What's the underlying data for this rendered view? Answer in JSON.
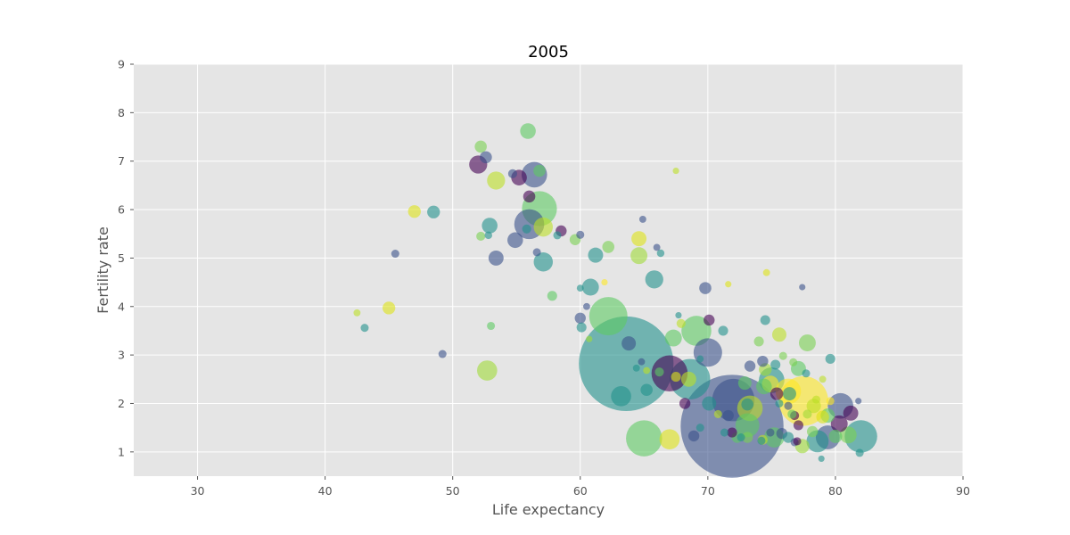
{
  "chart_data": {
    "type": "scatter",
    "title": "2005",
    "xlabel": "Life expectancy",
    "ylabel": "Fertility rate",
    "xlim": [
      25,
      90
    ],
    "ylim": [
      0.5,
      9
    ],
    "xticks": [
      30,
      40,
      50,
      60,
      70,
      80,
      90
    ],
    "yticks": [
      1,
      2,
      3,
      4,
      5,
      6,
      7,
      8,
      9
    ],
    "grid": true,
    "background": "#e5e5e5",
    "alpha": 0.6,
    "size_note": "bubble size varies with population",
    "points": [
      {
        "x": 71.9,
        "y": 1.53,
        "size": 1300,
        "color": "#3b528b"
      },
      {
        "x": 63.6,
        "y": 2.82,
        "size": 1100,
        "color": "#21918c"
      },
      {
        "x": 77.5,
        "y": 2.05,
        "size": 300,
        "color": "#fde725"
      },
      {
        "x": 72.0,
        "y": 2.07,
        "size": 220,
        "color": "#3b528b"
      },
      {
        "x": 68.6,
        "y": 2.5,
        "size": 200,
        "color": "#21918c"
      },
      {
        "x": 62.2,
        "y": 3.8,
        "size": 180,
        "color": "#5ec962"
      },
      {
        "x": 65.0,
        "y": 1.28,
        "size": 160,
        "color": "#5ec962"
      },
      {
        "x": 67.0,
        "y": 2.62,
        "size": 160,
        "color": "#440154"
      },
      {
        "x": 56.8,
        "y": 6.02,
        "size": 150,
        "color": "#5ec962"
      },
      {
        "x": 82.0,
        "y": 1.32,
        "size": 130,
        "color": "#21918c"
      },
      {
        "x": 69.1,
        "y": 3.5,
        "size": 110,
        "color": "#5ec962"
      },
      {
        "x": 56.0,
        "y": 5.7,
        "size": 110,
        "color": "#3b528b"
      },
      {
        "x": 70.0,
        "y": 3.05,
        "size": 100,
        "color": "#3b528b"
      },
      {
        "x": 56.4,
        "y": 6.72,
        "size": 80,
        "color": "#3b528b"
      },
      {
        "x": 80.4,
        "y": 1.95,
        "size": 80,
        "color": "#3b528b"
      },
      {
        "x": 73.3,
        "y": 1.9,
        "size": 80,
        "color": "#bddf26"
      },
      {
        "x": 75.0,
        "y": 2.48,
        "size": 80,
        "color": "#21918c"
      },
      {
        "x": 76.3,
        "y": 2.25,
        "size": 80,
        "color": "#fde725"
      },
      {
        "x": 79.4,
        "y": 1.3,
        "size": 70,
        "color": "#3b528b"
      },
      {
        "x": 73.1,
        "y": 1.55,
        "size": 70,
        "color": "#5ec962"
      },
      {
        "x": 78.6,
        "y": 1.22,
        "size": 60,
        "color": "#21918c"
      },
      {
        "x": 75.2,
        "y": 1.3,
        "size": 50,
        "color": "#5ec962"
      },
      {
        "x": 52.7,
        "y": 2.68,
        "size": 50,
        "color": "#a0da39"
      },
      {
        "x": 57.1,
        "y": 4.92,
        "size": 45,
        "color": "#21918c"
      },
      {
        "x": 63.2,
        "y": 2.15,
        "size": 50,
        "color": "#21918c"
      },
      {
        "x": 67.0,
        "y": 1.26,
        "size": 50,
        "color": "#dde318"
      },
      {
        "x": 57.1,
        "y": 5.64,
        "size": 45,
        "color": "#bddf26"
      },
      {
        "x": 53.4,
        "y": 6.6,
        "size": 40,
        "color": "#bddf26"
      },
      {
        "x": 52.0,
        "y": 6.93,
        "size": 40,
        "color": "#440154"
      },
      {
        "x": 65.8,
        "y": 4.56,
        "size": 40,
        "color": "#21918c"
      },
      {
        "x": 60.8,
        "y": 4.4,
        "size": 35,
        "color": "#21918c"
      },
      {
        "x": 67.3,
        "y": 3.35,
        "size": 35,
        "color": "#5ec962"
      },
      {
        "x": 77.8,
        "y": 3.25,
        "size": 35,
        "color": "#7ad151"
      },
      {
        "x": 81.0,
        "y": 1.35,
        "size": 35,
        "color": "#7ad151"
      },
      {
        "x": 80.3,
        "y": 1.58,
        "size": 35,
        "color": "#440154"
      },
      {
        "x": 64.6,
        "y": 5.05,
        "size": 35,
        "color": "#a0da39"
      },
      {
        "x": 74.9,
        "y": 2.4,
        "size": 35,
        "color": "#fde725"
      },
      {
        "x": 52.9,
        "y": 5.67,
        "size": 30,
        "color": "#21918c"
      },
      {
        "x": 55.9,
        "y": 7.62,
        "size": 30,
        "color": "#5ec962"
      },
      {
        "x": 55.2,
        "y": 6.66,
        "size": 30,
        "color": "#440154"
      },
      {
        "x": 54.9,
        "y": 5.37,
        "size": 30,
        "color": "#3b528b"
      },
      {
        "x": 53.4,
        "y": 5.0,
        "size": 28,
        "color": "#3b528b"
      },
      {
        "x": 61.2,
        "y": 5.06,
        "size": 28,
        "color": "#21918c"
      },
      {
        "x": 64.6,
        "y": 5.4,
        "size": 28,
        "color": "#dde318"
      },
      {
        "x": 63.8,
        "y": 3.24,
        "size": 25,
        "color": "#3b528b"
      },
      {
        "x": 68.5,
        "y": 2.5,
        "size": 28,
        "color": "#bddf26"
      },
      {
        "x": 74.4,
        "y": 2.35,
        "size": 30,
        "color": "#5ec962"
      },
      {
        "x": 81.2,
        "y": 1.8,
        "size": 28,
        "color": "#440154"
      },
      {
        "x": 79.4,
        "y": 1.75,
        "size": 25,
        "color": "#5ec962"
      },
      {
        "x": 78.3,
        "y": 1.95,
        "size": 25,
        "color": "#bddf26"
      },
      {
        "x": 75.6,
        "y": 3.42,
        "size": 25,
        "color": "#bddf26"
      },
      {
        "x": 77.1,
        "y": 2.72,
        "size": 28,
        "color": "#5ec962"
      },
      {
        "x": 77.4,
        "y": 1.12,
        "size": 25,
        "color": "#a0da39"
      },
      {
        "x": 48.5,
        "y": 5.95,
        "size": 20,
        "color": "#21918c"
      },
      {
        "x": 47.0,
        "y": 5.96,
        "size": 20,
        "color": "#dde318"
      },
      {
        "x": 45.0,
        "y": 3.97,
        "size": 20,
        "color": "#dde318"
      },
      {
        "x": 52.2,
        "y": 7.3,
        "size": 18,
        "color": "#7ad151"
      },
      {
        "x": 52.6,
        "y": 7.08,
        "size": 18,
        "color": "#3b528b"
      },
      {
        "x": 56.0,
        "y": 6.27,
        "size": 18,
        "color": "#440154"
      },
      {
        "x": 56.8,
        "y": 6.8,
        "size": 18,
        "color": "#5ec962"
      },
      {
        "x": 58.5,
        "y": 5.56,
        "size": 15,
        "color": "#440154"
      },
      {
        "x": 59.6,
        "y": 5.38,
        "size": 15,
        "color": "#7ad151"
      },
      {
        "x": 62.2,
        "y": 5.23,
        "size": 18,
        "color": "#7ad151"
      },
      {
        "x": 60.0,
        "y": 3.76,
        "size": 15,
        "color": "#3b528b"
      },
      {
        "x": 57.8,
        "y": 4.22,
        "size": 12,
        "color": "#5ec962"
      },
      {
        "x": 60.1,
        "y": 3.57,
        "size": 12,
        "color": "#21918c"
      },
      {
        "x": 70.1,
        "y": 3.72,
        "size": 15,
        "color": "#440154"
      },
      {
        "x": 69.8,
        "y": 4.38,
        "size": 18,
        "color": "#3b528b"
      },
      {
        "x": 65.2,
        "y": 2.28,
        "size": 18,
        "color": "#21918c"
      },
      {
        "x": 68.2,
        "y": 2.0,
        "size": 15,
        "color": "#440154"
      },
      {
        "x": 68.9,
        "y": 1.33,
        "size": 15,
        "color": "#3b528b"
      },
      {
        "x": 70.1,
        "y": 2.0,
        "size": 25,
        "color": "#21918c"
      },
      {
        "x": 72.9,
        "y": 2.42,
        "size": 22,
        "color": "#5ec962"
      },
      {
        "x": 73.3,
        "y": 2.77,
        "size": 15,
        "color": "#3b528b"
      },
      {
        "x": 74.3,
        "y": 2.87,
        "size": 15,
        "color": "#3b528b"
      },
      {
        "x": 74.5,
        "y": 2.7,
        "size": 20,
        "color": "#a0da39"
      },
      {
        "x": 74.0,
        "y": 3.28,
        "size": 12,
        "color": "#7ad151"
      },
      {
        "x": 75.3,
        "y": 2.8,
        "size": 12,
        "color": "#21918c"
      },
      {
        "x": 74.5,
        "y": 3.72,
        "size": 12,
        "color": "#21918c"
      },
      {
        "x": 76.4,
        "y": 2.2,
        "size": 22,
        "color": "#21918c"
      },
      {
        "x": 75.8,
        "y": 1.38,
        "size": 15,
        "color": "#3b528b"
      },
      {
        "x": 76.3,
        "y": 1.3,
        "size": 15,
        "color": "#21918c"
      },
      {
        "x": 77.1,
        "y": 1.55,
        "size": 12,
        "color": "#440154"
      },
      {
        "x": 78.2,
        "y": 1.42,
        "size": 15,
        "color": "#7ad151"
      },
      {
        "x": 79.6,
        "y": 2.92,
        "size": 12,
        "color": "#21918c"
      },
      {
        "x": 79.0,
        "y": 1.72,
        "size": 20,
        "color": "#dde318"
      },
      {
        "x": 80.0,
        "y": 1.32,
        "size": 22,
        "color": "#5ec962"
      },
      {
        "x": 73.1,
        "y": 1.3,
        "size": 15,
        "color": "#7ad151"
      },
      {
        "x": 71.6,
        "y": 1.75,
        "size": 15,
        "color": "#3b528b"
      },
      {
        "x": 72.3,
        "y": 1.3,
        "size": 15,
        "color": "#5ec962"
      },
      {
        "x": 71.9,
        "y": 1.4,
        "size": 12,
        "color": "#440154"
      },
      {
        "x": 74.3,
        "y": 1.25,
        "size": 12,
        "color": "#bddf26"
      },
      {
        "x": 73.1,
        "y": 1.98,
        "size": 18,
        "color": "#21918c"
      },
      {
        "x": 67.5,
        "y": 2.55,
        "size": 12,
        "color": "#dde318"
      },
      {
        "x": 66.2,
        "y": 2.65,
        "size": 10,
        "color": "#5ec962"
      },
      {
        "x": 71.2,
        "y": 3.5,
        "size": 12,
        "color": "#21918c"
      },
      {
        "x": 67.9,
        "y": 3.65,
        "size": 10,
        "color": "#bddf26"
      },
      {
        "x": 49.2,
        "y": 3.02,
        "size": 8,
        "color": "#3b528b"
      },
      {
        "x": 43.1,
        "y": 3.56,
        "size": 8,
        "color": "#21918c"
      },
      {
        "x": 42.5,
        "y": 3.87,
        "size": 6,
        "color": "#bddf26"
      },
      {
        "x": 45.5,
        "y": 5.09,
        "size": 8,
        "color": "#3b528b"
      },
      {
        "x": 52.2,
        "y": 5.45,
        "size": 10,
        "color": "#7ad151"
      },
      {
        "x": 53.0,
        "y": 3.6,
        "size": 8,
        "color": "#5ec962"
      },
      {
        "x": 52.8,
        "y": 5.47,
        "size": 7,
        "color": "#21918c"
      },
      {
        "x": 54.7,
        "y": 6.74,
        "size": 10,
        "color": "#3b528b"
      },
      {
        "x": 55.8,
        "y": 5.6,
        "size": 10,
        "color": "#21918c"
      },
      {
        "x": 56.6,
        "y": 5.12,
        "size": 8,
        "color": "#3b528b"
      },
      {
        "x": 58.2,
        "y": 5.47,
        "size": 8,
        "color": "#21918c"
      },
      {
        "x": 60.0,
        "y": 5.48,
        "size": 8,
        "color": "#3b528b"
      },
      {
        "x": 60.0,
        "y": 4.38,
        "size": 6,
        "color": "#21918c"
      },
      {
        "x": 60.5,
        "y": 4.0,
        "size": 6,
        "color": "#3b528b"
      },
      {
        "x": 60.7,
        "y": 3.33,
        "size": 5,
        "color": "#a0da39"
      },
      {
        "x": 61.9,
        "y": 4.5,
        "size": 5,
        "color": "#fde725"
      },
      {
        "x": 64.9,
        "y": 5.8,
        "size": 6,
        "color": "#3b528b"
      },
      {
        "x": 66.0,
        "y": 5.22,
        "size": 6,
        "color": "#3b528b"
      },
      {
        "x": 66.3,
        "y": 5.1,
        "size": 7,
        "color": "#21918c"
      },
      {
        "x": 64.4,
        "y": 2.73,
        "size": 6,
        "color": "#21918c"
      },
      {
        "x": 64.8,
        "y": 2.86,
        "size": 6,
        "color": "#3b528b"
      },
      {
        "x": 65.2,
        "y": 2.68,
        "size": 6,
        "color": "#bddf26"
      },
      {
        "x": 67.5,
        "y": 6.8,
        "size": 5,
        "color": "#bddf26"
      },
      {
        "x": 67.7,
        "y": 3.82,
        "size": 5,
        "color": "#21918c"
      },
      {
        "x": 69.4,
        "y": 2.92,
        "size": 6,
        "color": "#21918c"
      },
      {
        "x": 69.4,
        "y": 1.5,
        "size": 8,
        "color": "#21918c"
      },
      {
        "x": 71.3,
        "y": 1.4,
        "size": 8,
        "color": "#21918c"
      },
      {
        "x": 70.8,
        "y": 1.78,
        "size": 8,
        "color": "#bddf26"
      },
      {
        "x": 71.6,
        "y": 4.46,
        "size": 5,
        "color": "#dde318"
      },
      {
        "x": 74.6,
        "y": 4.7,
        "size": 6,
        "color": "#dde318"
      },
      {
        "x": 77.4,
        "y": 4.4,
        "size": 5,
        "color": "#3b528b"
      },
      {
        "x": 75.9,
        "y": 2.98,
        "size": 8,
        "color": "#7ad151"
      },
      {
        "x": 76.7,
        "y": 2.85,
        "size": 8,
        "color": "#7ad151"
      },
      {
        "x": 77.7,
        "y": 2.62,
        "size": 8,
        "color": "#21918c"
      },
      {
        "x": 76.3,
        "y": 1.95,
        "size": 8,
        "color": "#3b528b"
      },
      {
        "x": 76.8,
        "y": 1.75,
        "size": 10,
        "color": "#440154"
      },
      {
        "x": 76.6,
        "y": 1.78,
        "size": 10,
        "color": "#5ec962"
      },
      {
        "x": 77.8,
        "y": 1.78,
        "size": 10,
        "color": "#a0da39"
      },
      {
        "x": 78.5,
        "y": 2.08,
        "size": 8,
        "color": "#bddf26"
      },
      {
        "x": 79.6,
        "y": 2.05,
        "size": 8,
        "color": "#fde725"
      },
      {
        "x": 79.0,
        "y": 2.5,
        "size": 6,
        "color": "#bddf26"
      },
      {
        "x": 78.9,
        "y": 0.86,
        "size": 5,
        "color": "#21918c"
      },
      {
        "x": 81.9,
        "y": 0.98,
        "size": 8,
        "color": "#21918c"
      },
      {
        "x": 81.8,
        "y": 2.05,
        "size": 5,
        "color": "#3b528b"
      },
      {
        "x": 74.2,
        "y": 1.23,
        "size": 8,
        "color": "#21918c"
      },
      {
        "x": 74.9,
        "y": 1.4,
        "size": 8,
        "color": "#3b528b"
      },
      {
        "x": 72.6,
        "y": 1.3,
        "size": 8,
        "color": "#21918c"
      },
      {
        "x": 75.4,
        "y": 2.2,
        "size": 20,
        "color": "#440154"
      },
      {
        "x": 76.8,
        "y": 1.2,
        "size": 8,
        "color": "#3b528b"
      },
      {
        "x": 77.0,
        "y": 1.22,
        "size": 8,
        "color": "#440154"
      },
      {
        "x": 75.6,
        "y": 2.0,
        "size": 8,
        "color": "#21918c"
      }
    ]
  }
}
